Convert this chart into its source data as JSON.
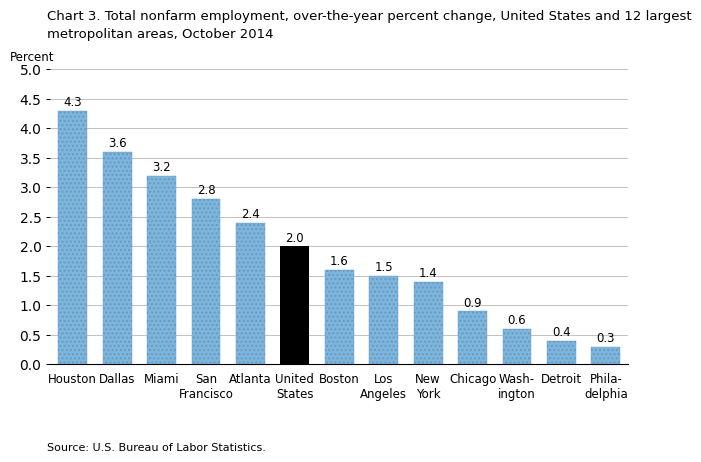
{
  "title_line1": "Chart 3. Total nonfarm employment, over-the-year percent change, United States and 12 largest",
  "title_line2": "metropolitan areas, October 2014",
  "ylabel": "Percent",
  "source": "Source: U.S. Bureau of Labor Statistics.",
  "categories": [
    "Houston",
    "Dallas",
    "Miami",
    "San\nFrancisco",
    "Atlanta",
    "United\nStates",
    "Boston",
    "Los\nAngeles",
    "New\nYork",
    "Chicago",
    "Wash-\nington",
    "Detroit",
    "Phila-\ndelphia"
  ],
  "values": [
    4.3,
    3.6,
    3.2,
    2.8,
    2.4,
    2.0,
    1.6,
    1.5,
    1.4,
    0.9,
    0.6,
    0.4,
    0.3
  ],
  "bar_colors": [
    "#7EB6D9",
    "#7EB6D9",
    "#7EB6D9",
    "#7EB6D9",
    "#7EB6D9",
    "#000000",
    "#7EB6D9",
    "#7EB6D9",
    "#7EB6D9",
    "#7EB6D9",
    "#7EB6D9",
    "#7EB6D9",
    "#7EB6D9"
  ],
  "ylim": [
    0,
    5.0
  ],
  "yticks": [
    0.0,
    0.5,
    1.0,
    1.5,
    2.0,
    2.5,
    3.0,
    3.5,
    4.0,
    4.5,
    5.0
  ],
  "title_fontsize": 9.5,
  "value_fontsize": 8.5,
  "tick_fontsize": 8.5,
  "ylabel_fontsize": 8.5,
  "source_fontsize": 8
}
